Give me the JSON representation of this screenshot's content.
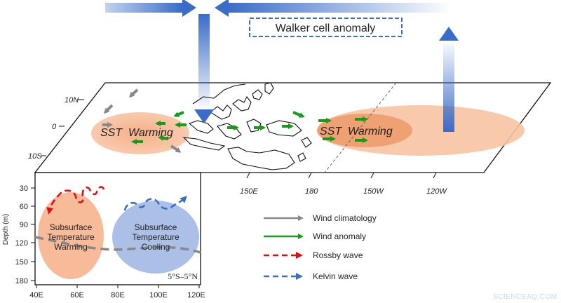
{
  "walker_label": "Walker cell anomaly",
  "map": {
    "lat_labels": [
      "10N",
      "0",
      "10S"
    ],
    "lon_labels": [
      "150E",
      "180",
      "150W",
      "120W"
    ],
    "sst_labels": [
      "SST  Warming",
      "SST  Warming"
    ]
  },
  "inset": {
    "ylabel": "Depth (m)",
    "y_ticks": [
      "30",
      "60",
      "90",
      "120",
      "150",
      "180"
    ],
    "x_ticks": [
      "40E",
      "60E",
      "80E",
      "100E",
      "120E"
    ],
    "warm_label": [
      "Subsurface",
      "Temperature",
      "Warming"
    ],
    "cool_label": [
      "Subsurface",
      "Temperature",
      "Cooling"
    ],
    "lat_band": "5°S–5°N"
  },
  "legend": [
    {
      "label": "Wind climatology",
      "style": "solid",
      "color": "#888888"
    },
    {
      "label": "Wind anomaly",
      "style": "solid",
      "color": "#1a9a1a"
    },
    {
      "label": "Rossby wave",
      "style": "dashed",
      "color": "#dd1111"
    },
    {
      "label": "Kelvin wave",
      "style": "dashed",
      "color": "#3a6fc0"
    }
  ],
  "watermark": "SCIENCEAQ.COM",
  "colors": {
    "warm": "#f6b48e",
    "warm_core": "#ef9a6a",
    "cool": "#a8bde6",
    "walker": "#3a6cc8",
    "wind_anomaly": "#1a9a1a",
    "wind_climatology": "#888888"
  }
}
